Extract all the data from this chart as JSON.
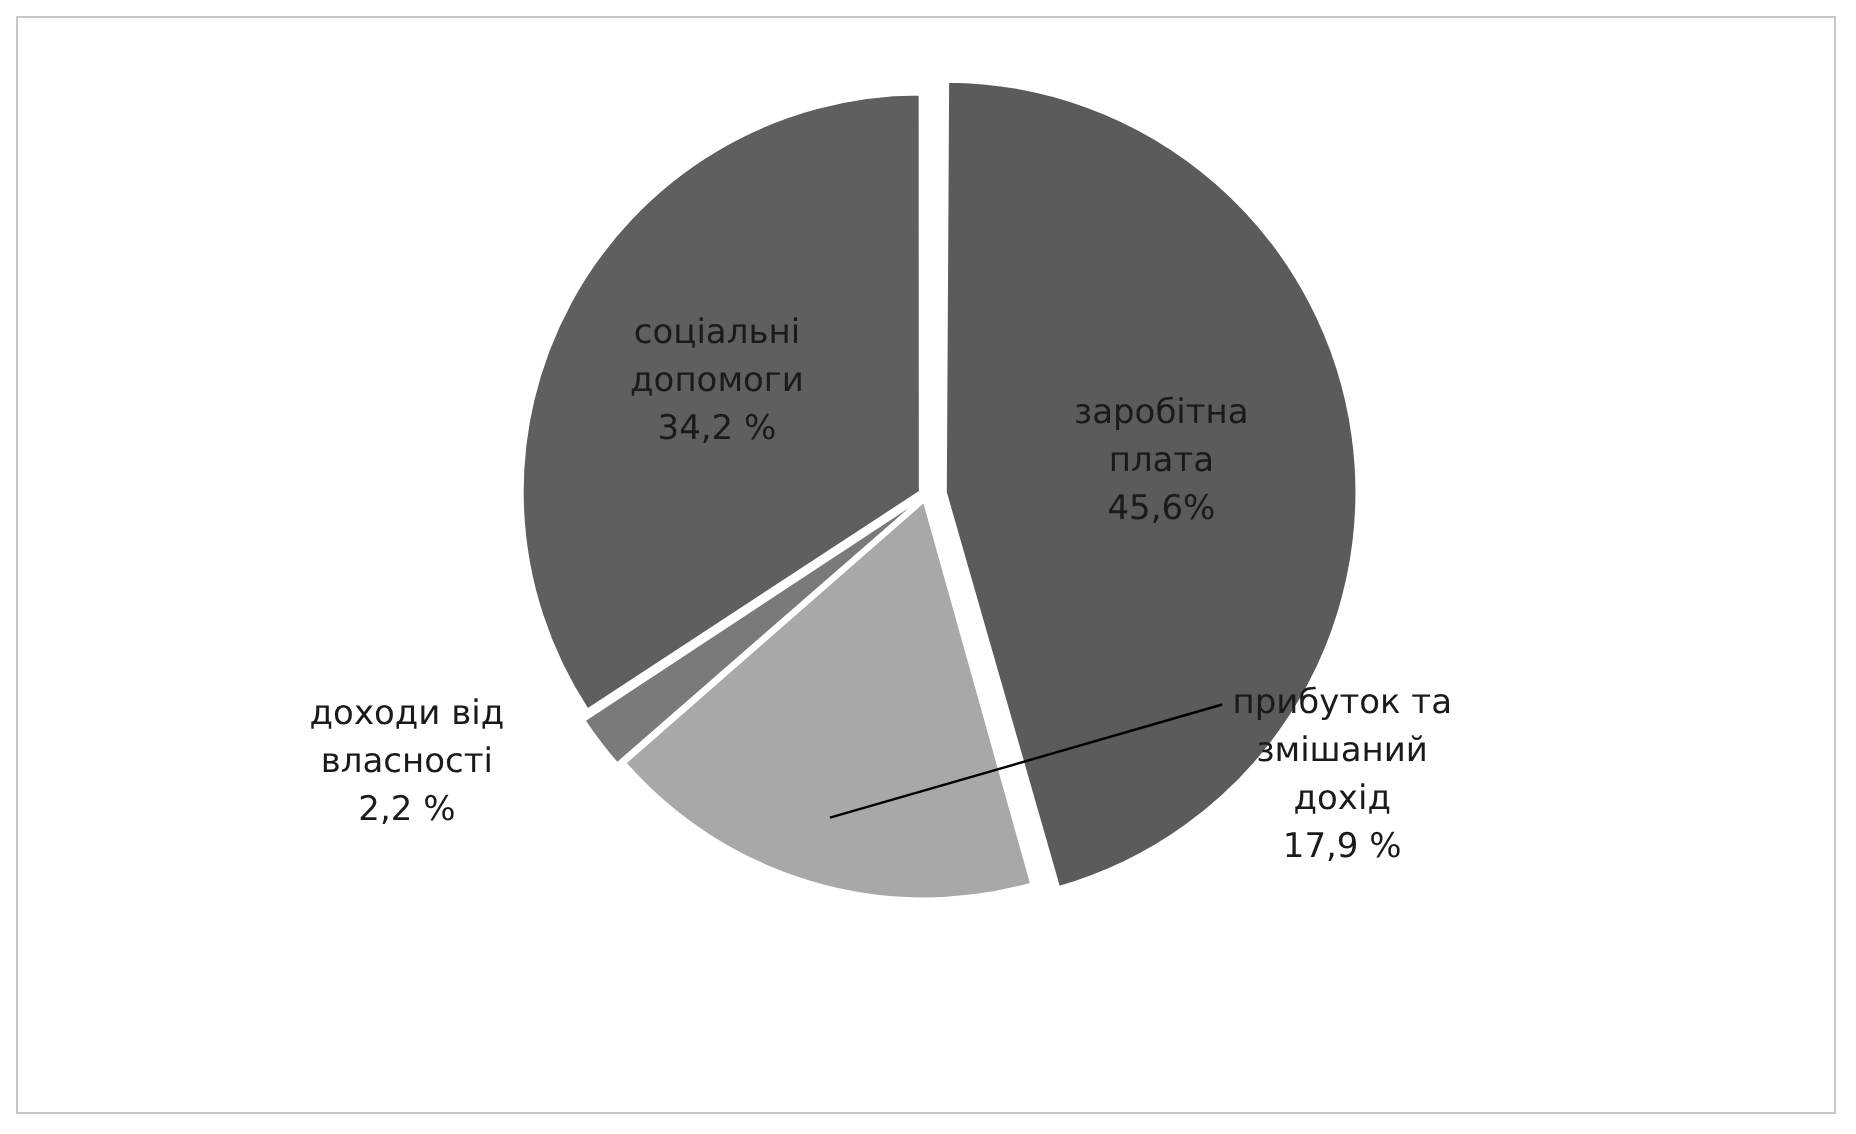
{
  "chart_data": {
    "type": "pie",
    "categories": [
      "заробітна плата",
      "прибуток та змішаний дохід",
      "доходи від власності",
      "соціальні допомоги"
    ],
    "values": [
      45.6,
      17.9,
      2.2,
      34.2
    ],
    "colors": [
      "#5b5b5b",
      "#a8a8a8",
      "#7a7a7a",
      "#5f5f5f"
    ],
    "value_labels": [
      "45,6%",
      "17,9 %",
      "2,2 %",
      "34,2 %"
    ],
    "legend": false
  }
}
